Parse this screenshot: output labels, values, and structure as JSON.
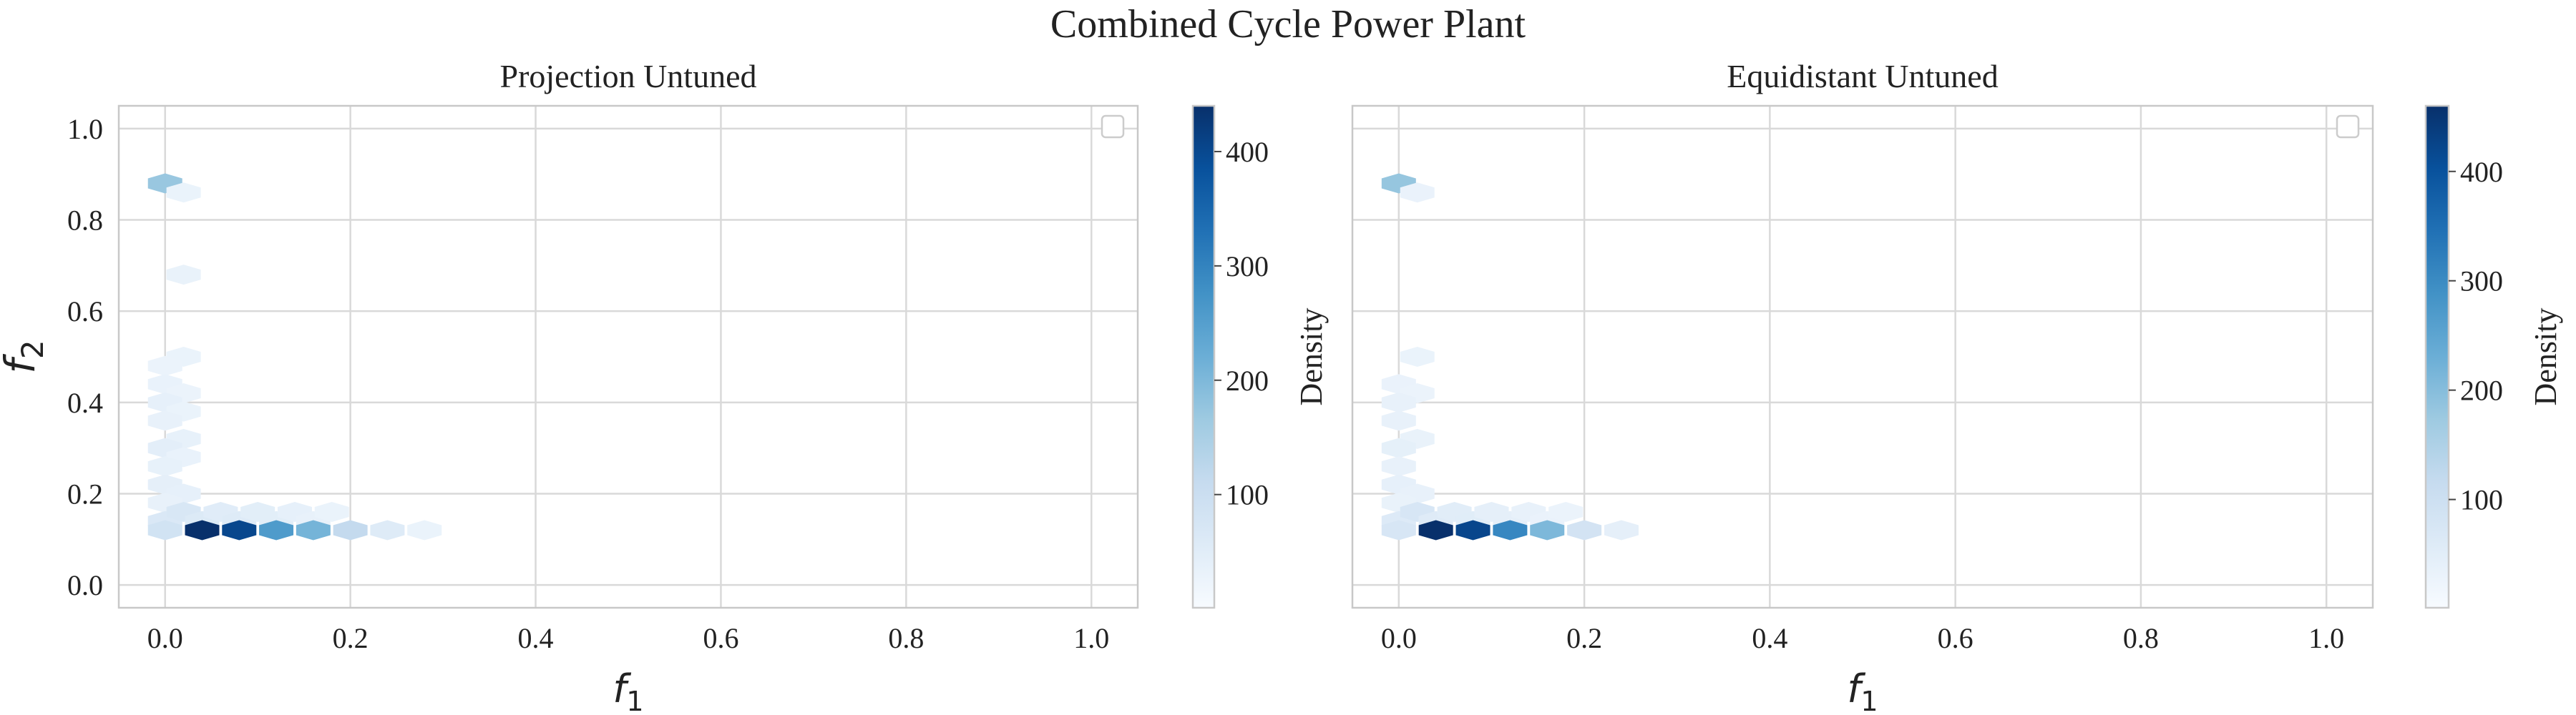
{
  "figure": {
    "title": "Combined Cycle Power Plant"
  },
  "chart_data": [
    {
      "type": "heatmap",
      "title": "Projection Untuned",
      "xlabel": "f",
      "xlabel_sub": "1",
      "ylabel": "f",
      "ylabel_sub": "2",
      "xlim": [
        -0.05,
        1.05
      ],
      "ylim": [
        -0.05,
        1.05
      ],
      "xticks": [
        "0.0",
        "0.2",
        "0.4",
        "0.6",
        "0.8",
        "1.0"
      ],
      "yticks": [
        "0.0",
        "0.2",
        "0.4",
        "0.6",
        "0.8",
        "1.0"
      ],
      "grid": true,
      "legend": "top-right (empty)",
      "colorbar": {
        "label": "Density",
        "min": 1,
        "max": 440,
        "ticks": [
          "100",
          "200",
          "300",
          "400"
        ],
        "colormap": "Blues"
      },
      "cells": [
        {
          "x": 0.0,
          "y": 0.88,
          "density": 160
        },
        {
          "x": 0.02,
          "y": 0.86,
          "density": 12
        },
        {
          "x": 0.02,
          "y": 0.68,
          "density": 15
        },
        {
          "x": 0.02,
          "y": 0.5,
          "density": 12
        },
        {
          "x": 0.0,
          "y": 0.48,
          "density": 10
        },
        {
          "x": 0.0,
          "y": 0.44,
          "density": 14
        },
        {
          "x": 0.02,
          "y": 0.42,
          "density": 10
        },
        {
          "x": 0.0,
          "y": 0.4,
          "density": 22
        },
        {
          "x": 0.02,
          "y": 0.38,
          "density": 12
        },
        {
          "x": 0.0,
          "y": 0.36,
          "density": 18
        },
        {
          "x": 0.02,
          "y": 0.32,
          "density": 20
        },
        {
          "x": 0.0,
          "y": 0.3,
          "density": 28
        },
        {
          "x": 0.02,
          "y": 0.28,
          "density": 14
        },
        {
          "x": 0.0,
          "y": 0.26,
          "density": 20
        },
        {
          "x": 0.0,
          "y": 0.22,
          "density": 24
        },
        {
          "x": 0.02,
          "y": 0.2,
          "density": 22
        },
        {
          "x": 0.0,
          "y": 0.18,
          "density": 18
        },
        {
          "x": 0.0,
          "y": 0.14,
          "density": 50
        },
        {
          "x": 0.02,
          "y": 0.16,
          "density": 55
        },
        {
          "x": 0.04,
          "y": 0.14,
          "density": 45
        },
        {
          "x": 0.06,
          "y": 0.16,
          "density": 35
        },
        {
          "x": 0.08,
          "y": 0.14,
          "density": 40
        },
        {
          "x": 0.1,
          "y": 0.16,
          "density": 30
        },
        {
          "x": 0.12,
          "y": 0.14,
          "density": 30
        },
        {
          "x": 0.14,
          "y": 0.16,
          "density": 22
        },
        {
          "x": 0.16,
          "y": 0.14,
          "density": 18
        },
        {
          "x": 0.18,
          "y": 0.16,
          "density": 12
        },
        {
          "x": 0.0,
          "y": 0.12,
          "density": 70
        },
        {
          "x": 0.04,
          "y": 0.12,
          "density": 440
        },
        {
          "x": 0.08,
          "y": 0.12,
          "density": 400
        },
        {
          "x": 0.12,
          "y": 0.12,
          "density": 250
        },
        {
          "x": 0.16,
          "y": 0.12,
          "density": 200
        },
        {
          "x": 0.2,
          "y": 0.12,
          "density": 100
        },
        {
          "x": 0.24,
          "y": 0.12,
          "density": 40
        },
        {
          "x": 0.28,
          "y": 0.12,
          "density": 12
        }
      ]
    },
    {
      "type": "heatmap",
      "title": "Equidistant Untuned",
      "xlabel": "f",
      "xlabel_sub": "1",
      "ylabel": "",
      "ylabel_sub": "",
      "xlim": [
        -0.05,
        1.05
      ],
      "ylim": [
        -0.05,
        1.05
      ],
      "xticks": [
        "0.0",
        "0.2",
        "0.4",
        "0.6",
        "0.8",
        "1.0"
      ],
      "yticks": [],
      "grid": true,
      "legend": "top-right (empty)",
      "colorbar": {
        "label": "Density",
        "min": 1,
        "max": 460,
        "ticks": [
          "100",
          "200",
          "300",
          "400"
        ],
        "colormap": "Blues"
      },
      "cells": [
        {
          "x": 0.0,
          "y": 0.88,
          "density": 170
        },
        {
          "x": 0.02,
          "y": 0.86,
          "density": 14
        },
        {
          "x": 0.02,
          "y": 0.5,
          "density": 12
        },
        {
          "x": 0.0,
          "y": 0.44,
          "density": 14
        },
        {
          "x": 0.02,
          "y": 0.42,
          "density": 10
        },
        {
          "x": 0.0,
          "y": 0.4,
          "density": 18
        },
        {
          "x": 0.0,
          "y": 0.36,
          "density": 18
        },
        {
          "x": 0.02,
          "y": 0.32,
          "density": 16
        },
        {
          "x": 0.0,
          "y": 0.3,
          "density": 24
        },
        {
          "x": 0.0,
          "y": 0.26,
          "density": 18
        },
        {
          "x": 0.0,
          "y": 0.22,
          "density": 22
        },
        {
          "x": 0.02,
          "y": 0.2,
          "density": 18
        },
        {
          "x": 0.0,
          "y": 0.18,
          "density": 16
        },
        {
          "x": 0.0,
          "y": 0.14,
          "density": 45
        },
        {
          "x": 0.02,
          "y": 0.16,
          "density": 60
        },
        {
          "x": 0.04,
          "y": 0.14,
          "density": 40
        },
        {
          "x": 0.06,
          "y": 0.16,
          "density": 34
        },
        {
          "x": 0.08,
          "y": 0.14,
          "density": 36
        },
        {
          "x": 0.1,
          "y": 0.16,
          "density": 26
        },
        {
          "x": 0.12,
          "y": 0.14,
          "density": 26
        },
        {
          "x": 0.14,
          "y": 0.16,
          "density": 18
        },
        {
          "x": 0.16,
          "y": 0.14,
          "density": 14
        },
        {
          "x": 0.18,
          "y": 0.16,
          "density": 10
        },
        {
          "x": 0.0,
          "y": 0.12,
          "density": 60
        },
        {
          "x": 0.04,
          "y": 0.12,
          "density": 460
        },
        {
          "x": 0.08,
          "y": 0.12,
          "density": 420
        },
        {
          "x": 0.12,
          "y": 0.12,
          "density": 300
        },
        {
          "x": 0.16,
          "y": 0.12,
          "density": 200
        },
        {
          "x": 0.2,
          "y": 0.12,
          "density": 70
        },
        {
          "x": 0.24,
          "y": 0.12,
          "density": 25
        }
      ]
    }
  ]
}
